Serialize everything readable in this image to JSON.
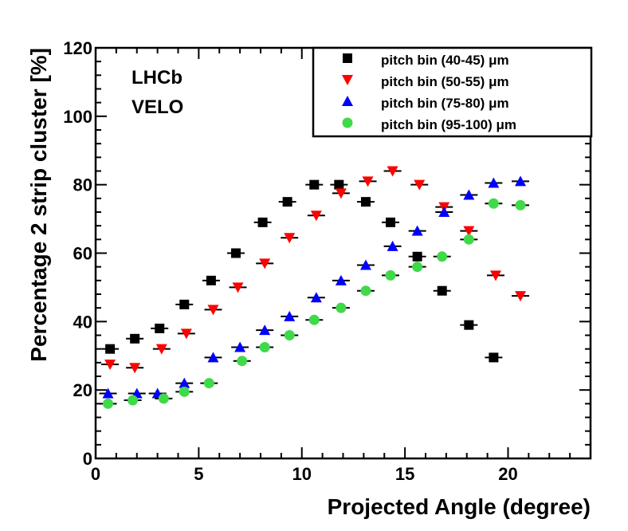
{
  "chart_data": {
    "type": "scatter",
    "title": "",
    "xlabel": "Projected Angle (degree)",
    "ylabel": "Percentage 2 strip cluster [%]",
    "xlim": [
      0,
      24
    ],
    "ylim": [
      0,
      120
    ],
    "x_ticks": [
      0,
      5,
      10,
      15,
      20
    ],
    "y_ticks": [
      0,
      20,
      40,
      60,
      80,
      100,
      120
    ],
    "experiment_label": "LHCb",
    "detector_label": "VELO",
    "legend_position": "top-right",
    "series": [
      {
        "name": "pitch bin (40-45) μm",
        "color": "#000000",
        "marker": "square",
        "x": [
          0.7,
          1.9,
          3.1,
          4.3,
          5.6,
          6.8,
          8.1,
          9.3,
          10.6,
          11.8,
          13.1,
          14.3,
          15.6,
          16.8,
          18.1,
          19.3
        ],
        "y": [
          32,
          35,
          38,
          45,
          52,
          60,
          69,
          75,
          80,
          80,
          75,
          69,
          59,
          49,
          39,
          29.5
        ]
      },
      {
        "name": "pitch bin (50-55) μm",
        "color": "#ff0000",
        "marker": "triangle-down",
        "x": [
          0.7,
          1.9,
          3.2,
          4.4,
          5.7,
          6.9,
          8.2,
          9.4,
          10.7,
          11.9,
          13.2,
          14.4,
          15.7,
          16.9,
          18.1,
          19.4,
          20.6
        ],
        "y": [
          27.5,
          26.5,
          32,
          36.5,
          43.5,
          50,
          57,
          64.5,
          71,
          77.5,
          81,
          84,
          80,
          73.5,
          66.5,
          53.5,
          47.5
        ]
      },
      {
        "name": "pitch bin (75-80) μm",
        "color": "#0000ff",
        "marker": "triangle-up",
        "x": [
          0.6,
          2.0,
          3.0,
          4.3,
          5.7,
          7.0,
          8.2,
          9.4,
          10.7,
          11.9,
          13.1,
          14.4,
          15.6,
          16.9,
          18.1,
          19.3,
          20.6
        ],
        "y": [
          19,
          19,
          19,
          22,
          29.5,
          32.5,
          37.5,
          41.5,
          47,
          52,
          56.5,
          62,
          66.5,
          72,
          77,
          80.5,
          81
        ]
      },
      {
        "name": "pitch bin (95-100) μm",
        "color": "#3fd94a",
        "marker": "circle",
        "x": [
          0.6,
          1.8,
          3.3,
          4.3,
          5.5,
          7.1,
          8.2,
          9.4,
          10.6,
          11.9,
          13.1,
          14.3,
          15.6,
          16.8,
          18.1,
          19.3,
          20.6
        ],
        "y": [
          16,
          17,
          17.5,
          19.5,
          22,
          28.5,
          32.5,
          36,
          40.5,
          44,
          49,
          53.5,
          56,
          59,
          64,
          74.5,
          74
        ]
      }
    ]
  }
}
